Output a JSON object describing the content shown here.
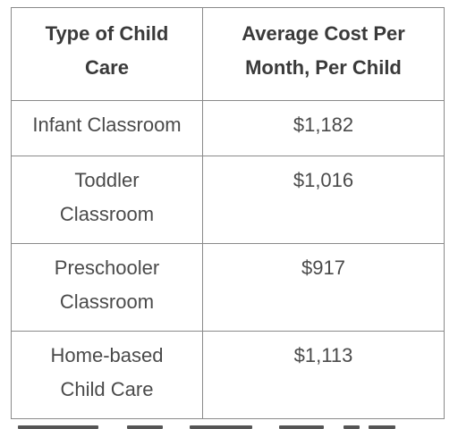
{
  "table": {
    "headers": [
      "Type of Child Care",
      "Average Cost Per Month, Per Child"
    ],
    "rows": [
      {
        "type": "Infant Classroom",
        "cost": "$1,182"
      },
      {
        "type": "Toddler Classroom",
        "cost": "$1,016"
      },
      {
        "type": "Preschooler Classroom",
        "cost": "$917"
      },
      {
        "type": "Home-based Child Care",
        "cost": "$1,113"
      }
    ]
  }
}
